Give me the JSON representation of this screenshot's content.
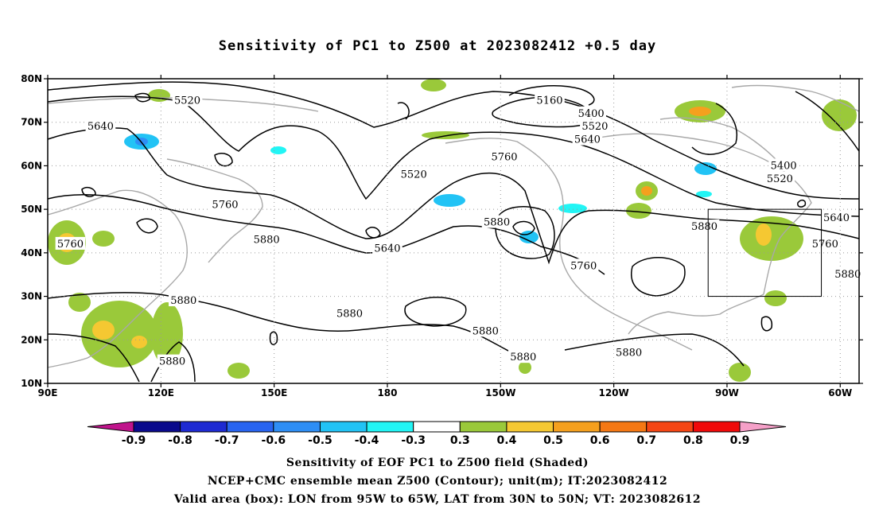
{
  "title": "Sensitivity of PC1 to Z500 at 2023082412 +0.5 day",
  "map": {
    "lon_range": [
      90,
      305
    ],
    "lat_range": [
      10,
      80
    ],
    "lat_ticks": [
      {
        "value": 80,
        "label": "80N"
      },
      {
        "value": 70,
        "label": "70N"
      },
      {
        "value": 60,
        "label": "60N"
      },
      {
        "value": 50,
        "label": "50N"
      },
      {
        "value": 40,
        "label": "40N"
      },
      {
        "value": 30,
        "label": "30N"
      },
      {
        "value": 20,
        "label": "20N"
      },
      {
        "value": 10,
        "label": "10N"
      }
    ],
    "lon_ticks": [
      {
        "value": 90,
        "label": "90E"
      },
      {
        "value": 120,
        "label": "120E"
      },
      {
        "value": 150,
        "label": "150E"
      },
      {
        "value": 180,
        "label": "180"
      },
      {
        "value": 210,
        "label": "150W"
      },
      {
        "value": 240,
        "label": "120W"
      },
      {
        "value": 270,
        "label": "90W"
      },
      {
        "value": 300,
        "label": "60W"
      }
    ],
    "valid_box": {
      "lon": [
        265,
        295
      ],
      "lat": [
        30,
        50
      ]
    },
    "contour_labels": [
      {
        "text": "5520",
        "lon": 127,
        "lat": 75
      },
      {
        "text": "5640",
        "lon": 104,
        "lat": 69
      },
      {
        "text": "5760",
        "lon": 137,
        "lat": 51
      },
      {
        "text": "5880",
        "lon": 148,
        "lat": 43
      },
      {
        "text": "5760",
        "lon": 96,
        "lat": 42
      },
      {
        "text": "5880",
        "lon": 126,
        "lat": 29
      },
      {
        "text": "5880",
        "lon": 123,
        "lat": 15
      },
      {
        "text": "5640",
        "lon": 180,
        "lat": 41
      },
      {
        "text": "5520",
        "lon": 187,
        "lat": 58
      },
      {
        "text": "5880",
        "lon": 170,
        "lat": 26
      },
      {
        "text": "5160",
        "lon": 223,
        "lat": 75
      },
      {
        "text": "5400",
        "lon": 234,
        "lat": 72
      },
      {
        "text": "5520",
        "lon": 235,
        "lat": 69
      },
      {
        "text": "5640",
        "lon": 233,
        "lat": 66
      },
      {
        "text": "5760",
        "lon": 211,
        "lat": 62
      },
      {
        "text": "5880",
        "lon": 209,
        "lat": 47
      },
      {
        "text": "5760",
        "lon": 232,
        "lat": 37
      },
      {
        "text": "5880",
        "lon": 206,
        "lat": 22
      },
      {
        "text": "5880",
        "lon": 216,
        "lat": 16
      },
      {
        "text": "5880",
        "lon": 244,
        "lat": 17
      },
      {
        "text": "5880",
        "lon": 264,
        "lat": 46
      },
      {
        "text": "5400",
        "lon": 285,
        "lat": 60
      },
      {
        "text": "5520",
        "lon": 284,
        "lat": 57
      },
      {
        "text": "5640",
        "lon": 299,
        "lat": 48
      },
      {
        "text": "5760",
        "lon": 296,
        "lat": 42
      },
      {
        "text": "5880",
        "lon": 302,
        "lat": 35
      }
    ]
  },
  "colorbar": {
    "labels": [
      "-0.9",
      "-0.8",
      "-0.7",
      "-0.6",
      "-0.5",
      "-0.4",
      "-0.3",
      "0.3",
      "0.4",
      "0.5",
      "0.6",
      "0.7",
      "0.8",
      "0.9"
    ],
    "colors": [
      "#0a0a8c",
      "#1e2ad2",
      "#2864f0",
      "#2e8ef5",
      "#22c3f5",
      "#22f5f5",
      "#ffffff",
      "#9ac93a",
      "#f5c832",
      "#f5a01e",
      "#f57814",
      "#f54614",
      "#f00a0a"
    ],
    "low_arrow_color": "#c0148c",
    "high_arrow_color": "#f5a0c8"
  },
  "captions": {
    "line1": "Sensitivity of EOF PC1 to Z500 field (Shaded)",
    "line2": "NCEP+CMC ensemble mean Z500 (Contour); unit(m); IT:2023082412",
    "line3": "Valid area (box): LON from 95W to 65W, LAT from 30N to 50N; VT: 2023082612"
  }
}
